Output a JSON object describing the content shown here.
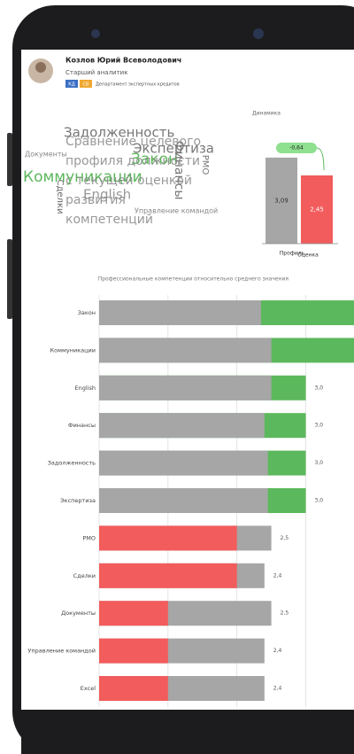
{
  "header": {
    "name": "Козлов Юрий Всеволодович",
    "position": "Старший аналитик",
    "badges": [
      "КД",
      "СВ"
    ],
    "department": "Департамент экспертных кредитов"
  },
  "word_cloud": {
    "overlay": [
      "Сравнение целевого",
      "профиля должности",
      "с текущей оценкой",
      "развития",
      "компетенций"
    ],
    "words": [
      {
        "text": "Задолженность",
        "color": "#777777"
      },
      {
        "text": "Экспертиза",
        "color": "#777777"
      },
      {
        "text": "Закон",
        "color": "#5cb85c"
      },
      {
        "text": "Коммуникации",
        "color": "#5cb85c"
      },
      {
        "text": "English",
        "color": "#999999"
      },
      {
        "text": "Сделки",
        "color": "#666666"
      },
      {
        "text": "Финансы",
        "color": "#777777"
      },
      {
        "text": "РМО",
        "color": "#777777"
      },
      {
        "text": "Документы",
        "color": "#888888"
      },
      {
        "text": "Управление командой",
        "color": "#888888"
      }
    ]
  },
  "chart_data": [
    {
      "type": "bar",
      "title": "Динамика",
      "categories": [
        "Профиль",
        "Оценка"
      ],
      "values": [
        3.09,
        2.45
      ],
      "value_labels": [
        "3,09",
        "2,45"
      ],
      "colors": [
        "#a6a6a6",
        "#f25c5c"
      ],
      "ylim": [
        0,
        3.5
      ],
      "annotation": "-0,64"
    },
    {
      "type": "overlap-hbar",
      "title": "Профессиональные компетенции относительно среднего значения",
      "categories": [
        "Закон",
        "Коммуникации",
        "English",
        "Финансы",
        "Задолженность",
        "Экспертиза",
        "PMO",
        "Сделки",
        "Документы",
        "Управление командой",
        "Excel"
      ],
      "series": [
        {
          "name": "Профиль",
          "color": "#a6a6a6",
          "values": [
            2.35,
            2.5,
            2.5,
            2.4,
            2.45,
            2.45,
            2.5,
            2.4,
            2.5,
            2.4,
            2.4
          ],
          "value_labels": [
            null,
            null,
            null,
            null,
            null,
            null,
            "2,5",
            "2,4",
            "2,5",
            "2,4",
            "2,4"
          ]
        },
        {
          "name": "Оценка",
          "color_above": "#5cb85c",
          "color_below": "#f25c5c",
          "values": [
            4.0,
            4.0,
            3.0,
            3.0,
            3.0,
            3.0,
            2.0,
            2.0,
            1.0,
            1.0,
            1.0
          ],
          "value_labels": [
            null,
            null,
            "3,0",
            "3,0",
            "3,0",
            "3,0",
            null,
            null,
            null,
            null,
            null
          ]
        }
      ],
      "xlim": [
        0,
        3.7
      ],
      "xticks": [
        0,
        1,
        2,
        3
      ],
      "grid": true
    }
  ]
}
